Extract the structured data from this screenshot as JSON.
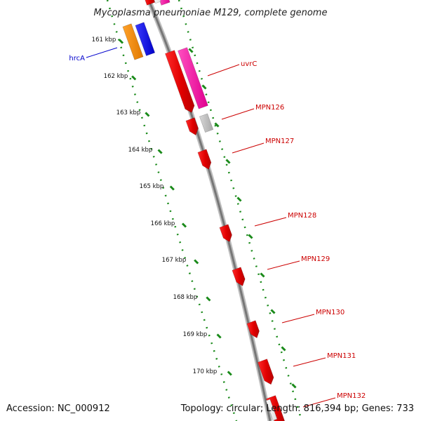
{
  "title": "Mycoplasma pneumoniae M129, complete genome",
  "footer": {
    "accession": "Accession: NC_000912",
    "summary": "Topology: circular; Length: 816,394 bp; Genes: 733"
  },
  "scale": {
    "unit": "kbp",
    "labels": [
      "161 kbp",
      "162 kbp",
      "163 kbp",
      "164 kbp",
      "165 kbp",
      "166 kbp",
      "167 kbp",
      "168 kbp",
      "169 kbp",
      "170 kbp"
    ]
  },
  "colors": {
    "backbone": "#777777",
    "ticks": "#1a8a1a",
    "forward_gene": "#e00000",
    "highlight_gene": "#e0008f",
    "pseudo_gene": "#b0b0b0",
    "orange_gene": "#ff8c00",
    "blue_gene": "#0000e0",
    "label_red": "#cc0000",
    "label_blue": "#0000cc"
  },
  "gene_labels": [
    {
      "name": "hrcA",
      "color": "blue"
    },
    {
      "name": "uvrC",
      "color": "red"
    },
    {
      "name": "MPN126",
      "color": "red"
    },
    {
      "name": "MPN127",
      "color": "red"
    },
    {
      "name": "MPN128",
      "color": "red"
    },
    {
      "name": "MPN129",
      "color": "red"
    },
    {
      "name": "MPN130",
      "color": "red"
    },
    {
      "name": "MPN131",
      "color": "red"
    },
    {
      "name": "MPN132",
      "color": "red"
    }
  ]
}
